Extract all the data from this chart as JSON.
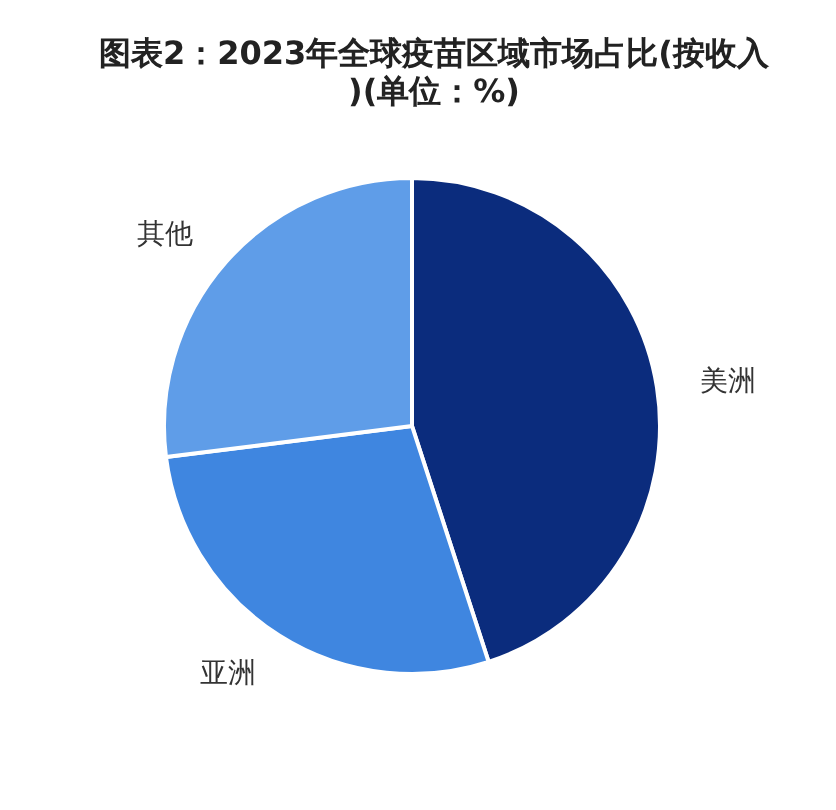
{
  "chart_data": {
    "type": "pie",
    "title": "图表2：2023年全球疫苗区域市场占比(按收入)(单位：%)",
    "categories": [
      "美洲",
      "亚洲",
      "其他"
    ],
    "values": [
      45,
      28,
      27
    ],
    "colors": [
      "#0b2c7d",
      "#3f86e0",
      "#5f9de8"
    ]
  }
}
